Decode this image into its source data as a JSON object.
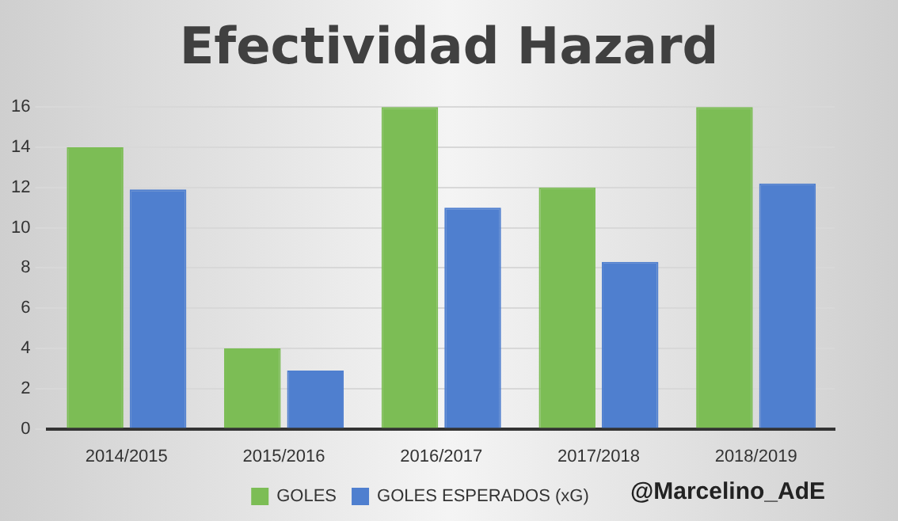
{
  "chart_data": {
    "type": "bar",
    "title": "Efectividad Hazard",
    "categories": [
      "2014/2015",
      "2015/2016",
      "2016/2017",
      "2017/2018",
      "2018/2019"
    ],
    "series": [
      {
        "name": "GOLES",
        "color": "#7cbd55",
        "values": [
          14,
          4,
          16,
          12,
          16
        ]
      },
      {
        "name": "GOLES ESPERADOS (xG)",
        "color": "#4f7fcf",
        "values": [
          11.9,
          2.9,
          11.0,
          8.3,
          12.2
        ]
      }
    ],
    "ylim": [
      0,
      16
    ],
    "yticks": [
      0,
      2,
      4,
      6,
      8,
      10,
      12,
      14,
      16
    ],
    "grid": "y",
    "legend": "bottom",
    "annotations": [
      "@Marcelino_AdE"
    ]
  }
}
